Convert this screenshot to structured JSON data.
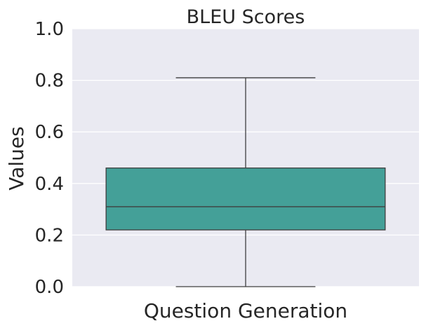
{
  "chart_data": {
    "type": "box",
    "title": "BLEU Scores",
    "xlabel": "",
    "ylabel": "Values",
    "ylim": [
      0.0,
      1.0
    ],
    "yticks": [
      "0.0",
      "0.2",
      "0.4",
      "0.6",
      "0.8",
      "1.0"
    ],
    "grid": true,
    "categories": [
      "Question Generation"
    ],
    "boxes": [
      {
        "category": "Question Generation",
        "whisker_low": 0.0,
        "q1": 0.22,
        "median": 0.31,
        "q3": 0.46,
        "whisker_high": 0.81
      }
    ],
    "colors": {
      "plot_background": "#eaeaf2",
      "grid": "#ffffff",
      "box_fill": "#44a098",
      "line": "#3f3f3f"
    }
  }
}
